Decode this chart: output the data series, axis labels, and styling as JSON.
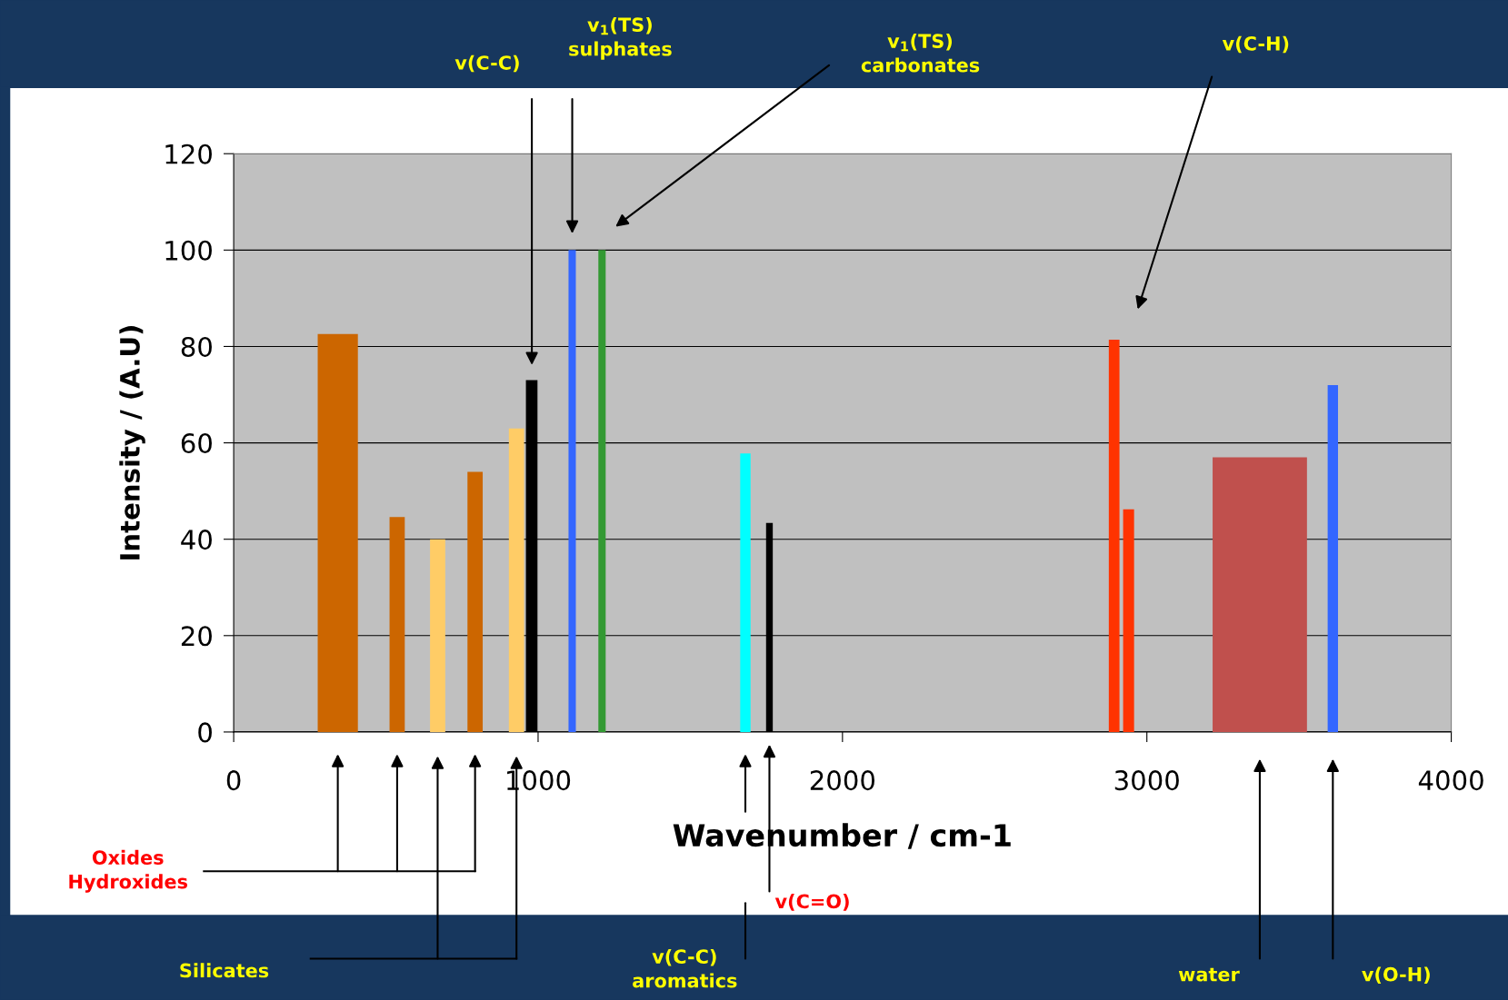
{
  "chart_data": {
    "type": "area",
    "xlabel": "Wavenumber / cm-1",
    "ylabel": "Intensity / (A.U)",
    "series": [
      {
        "color": "#cc6600",
        "x": [
          276,
          408
        ],
        "values": [
          82.6,
          82.6
        ]
      },
      {
        "color": "#cc6600",
        "x": [
          512,
          562
        ],
        "values": [
          44.6,
          44.6
        ]
      },
      {
        "color": "#ffcc66",
        "x": [
          645,
          695
        ],
        "values": [
          40,
          40
        ]
      },
      {
        "color": "#cc6600",
        "x": [
          768,
          818
        ],
        "values": [
          54,
          54
        ]
      },
      {
        "color": "#ffcc66",
        "x": [
          904,
          954
        ],
        "values": [
          63,
          63
        ]
      },
      {
        "color": "#000000",
        "x": [
          960,
          998
        ],
        "values": [
          73,
          73
        ]
      },
      {
        "color": "#3366ff",
        "x": [
          1100,
          1124
        ],
        "values": [
          100,
          100
        ]
      },
      {
        "color": "#339933",
        "x": [
          1198,
          1222
        ],
        "values": [
          100,
          100
        ]
      },
      {
        "color": "#00ffff",
        "x": [
          1664,
          1698
        ],
        "values": [
          57.8,
          57.8
        ]
      },
      {
        "color": "#000000",
        "x": [
          1749,
          1771
        ],
        "values": [
          43.4,
          43.4
        ]
      },
      {
        "color": "#ff3300",
        "x": [
          2875,
          2910,
          2910,
          2922,
          2922,
          2958
        ],
        "values": [
          81.4,
          81.4,
          0,
          0,
          46.2,
          46.2
        ]
      },
      {
        "color": "#c0504d",
        "x": [
          3216,
          3526
        ],
        "values": [
          57,
          57
        ]
      },
      {
        "color": "#3366ff",
        "x": [
          3594,
          3628
        ],
        "values": [
          72,
          72
        ]
      }
    ],
    "xlim": [
      0,
      4000
    ],
    "xticks": [
      0,
      1000,
      2000,
      3000,
      4000
    ],
    "ylim": [
      0,
      120
    ],
    "yticks": [
      0,
      20,
      40,
      60,
      80,
      100,
      120
    ],
    "grid": "y",
    "annotations": [
      "v$_{1}$(TS)\nsulphates",
      "v$_{1}$(TS)\ncarbonates",
      "v(C-C)",
      "v(C-H)",
      "Oxides\nHydroxides",
      "Silicates",
      "v(C-C)\naromatics",
      "v(C=O)",
      "water",
      "v(O-H)"
    ]
  }
}
